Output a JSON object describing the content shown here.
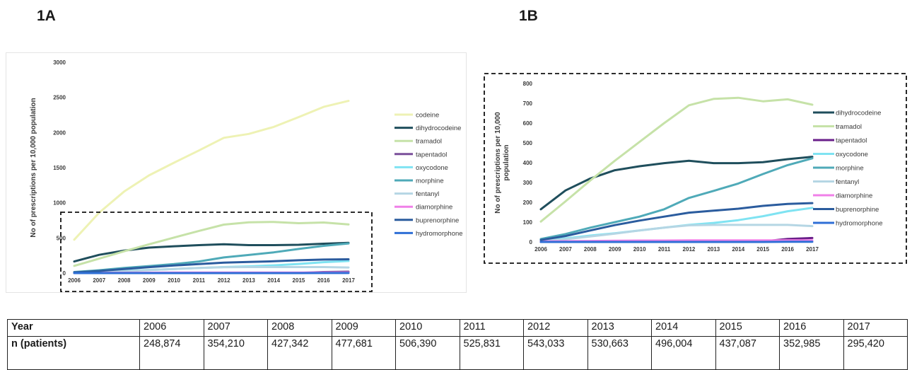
{
  "panels": {
    "a_label": "1A",
    "b_label": "1B"
  },
  "chart_data": [
    {
      "type": "line",
      "panel": "1A",
      "ylabel": "No of prescriptions per 10,000 population",
      "ylim": [
        0,
        3000
      ],
      "yticks": [
        0,
        500,
        1000,
        1500,
        2000,
        2500,
        3000
      ],
      "x": [
        "2006",
        "2007",
        "2008",
        "2009",
        "2010",
        "2011",
        "2012",
        "2013",
        "2014",
        "2015",
        "2016",
        "2017"
      ],
      "legend_position": "right",
      "grid": false,
      "series": [
        {
          "name": "codeine",
          "color": "#eef2b4",
          "values": [
            475,
            860,
            1160,
            1390,
            1570,
            1745,
            1925,
            1980,
            2080,
            2220,
            2365,
            2450
          ]
        },
        {
          "name": "dihydrocodeine",
          "color": "#1f4e5c",
          "values": [
            165,
            260,
            320,
            362,
            382,
            398,
            410,
            398,
            398,
            403,
            418,
            430
          ]
        },
        {
          "name": "tramadol",
          "color": "#c6e2a8",
          "values": [
            103,
            205,
            310,
            410,
            505,
            600,
            690,
            722,
            728,
            710,
            720,
            693
          ]
        },
        {
          "name": "tapentadol",
          "color": "#7a4f9a",
          "values": [
            0,
            0,
            0,
            0,
            0,
            0,
            0,
            1,
            2,
            3,
            15,
            20
          ]
        },
        {
          "name": "oxycodone",
          "color": "#7fe3f2",
          "values": [
            8,
            18,
            32,
            44,
            58,
            72,
            86,
            96,
            110,
            130,
            155,
            172
          ]
        },
        {
          "name": "morphine",
          "color": "#4faab8",
          "values": [
            15,
            40,
            72,
            100,
            128,
            165,
            222,
            258,
            295,
            343,
            388,
            422
          ]
        },
        {
          "name": "fentanyl",
          "color": "#b5d6e4",
          "values": [
            5,
            14,
            28,
            42,
            58,
            72,
            84,
            86,
            86,
            86,
            86,
            80
          ]
        },
        {
          "name": "diamorphine",
          "color": "#f080e8",
          "values": [
            3,
            4,
            5,
            6,
            7,
            7,
            8,
            8,
            8,
            8,
            8,
            8
          ]
        },
        {
          "name": "buprenorphine",
          "color": "#2b5c9e",
          "values": [
            10,
            30,
            58,
            85,
            108,
            128,
            148,
            158,
            168,
            182,
            192,
            196
          ]
        },
        {
          "name": "hydromorphone",
          "color": "#2f6fd6",
          "values": [
            0,
            0,
            0,
            0,
            0,
            0,
            0,
            0,
            0,
            0,
            1,
            1
          ]
        }
      ]
    },
    {
      "type": "line",
      "panel": "1B",
      "ylabel": "No of prescriptions per 10,000 population",
      "ylim": [
        0,
        800
      ],
      "yticks": [
        0,
        100,
        200,
        300,
        400,
        500,
        600,
        700,
        800
      ],
      "x": [
        "2006",
        "2007",
        "2008",
        "2009",
        "2010",
        "2011",
        "2012",
        "2013",
        "2014",
        "2015",
        "2016",
        "2017"
      ],
      "legend_position": "right",
      "grid": false,
      "series": [
        {
          "name": "dihydrocodeine",
          "color": "#1f4e5c",
          "values": [
            165,
            260,
            320,
            362,
            382,
            398,
            410,
            398,
            398,
            403,
            418,
            430
          ]
        },
        {
          "name": "tramadol",
          "color": "#c6e2a8",
          "values": [
            103,
            205,
            310,
            410,
            505,
            600,
            690,
            722,
            728,
            710,
            720,
            693
          ]
        },
        {
          "name": "tapentadol",
          "color": "#6a1f8a",
          "values": [
            0,
            0,
            0,
            0,
            0,
            0,
            0,
            1,
            2,
            3,
            15,
            20
          ]
        },
        {
          "name": "oxycodone",
          "color": "#7fe3f2",
          "values": [
            8,
            18,
            32,
            44,
            58,
            72,
            86,
            96,
            110,
            130,
            155,
            172
          ]
        },
        {
          "name": "morphine",
          "color": "#4faab8",
          "values": [
            15,
            40,
            72,
            100,
            128,
            165,
            222,
            258,
            295,
            343,
            388,
            422
          ]
        },
        {
          "name": "fentanyl",
          "color": "#b5d6e4",
          "values": [
            5,
            14,
            28,
            42,
            58,
            72,
            84,
            86,
            86,
            86,
            86,
            80
          ]
        },
        {
          "name": "diamorphine",
          "color": "#f080e8",
          "values": [
            3,
            4,
            5,
            6,
            7,
            7,
            8,
            8,
            8,
            8,
            8,
            8
          ]
        },
        {
          "name": "buprenorphine",
          "color": "#2b5c9e",
          "values": [
            10,
            30,
            58,
            85,
            108,
            128,
            148,
            158,
            168,
            182,
            192,
            196
          ]
        },
        {
          "name": "hydromorphone",
          "color": "#2f6fd6",
          "values": [
            0,
            0,
            0,
            0,
            0,
            0,
            0,
            0,
            0,
            0,
            1,
            1
          ]
        }
      ]
    }
  ],
  "table": {
    "rows": [
      {
        "label": "Year",
        "cells": [
          "2006",
          "2007",
          "2008",
          "2009",
          "2010",
          "2011",
          "2012",
          "2013",
          "2014",
          "2015",
          "2016",
          "2017"
        ]
      },
      {
        "label": "n (patients)",
        "cells": [
          "248,874",
          "354,210",
          "427,342",
          "477,681",
          "506,390",
          "525,831",
          "543,033",
          "530,663",
          "496,004",
          "437,087",
          "352,985",
          "295,420"
        ]
      }
    ]
  }
}
